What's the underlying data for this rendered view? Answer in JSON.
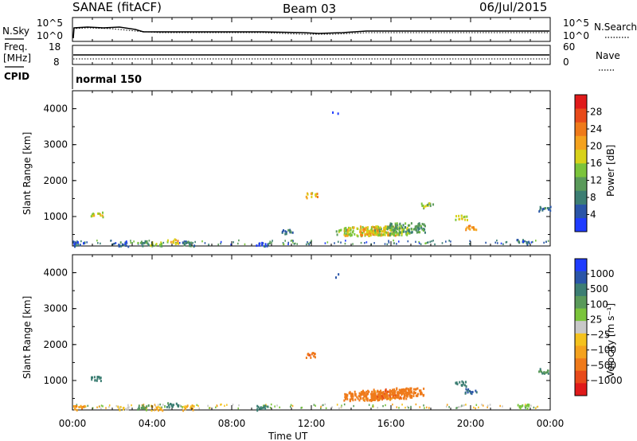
{
  "header": {
    "station": "SANAE (fitACF)",
    "beam": "Beam 03",
    "date": "06/Jul/2015"
  },
  "strip_panels": {
    "nsky": {
      "left_label": "N.Sky",
      "right_label": "N.Search",
      "left_ticks": [
        "10^5",
        "10^0"
      ],
      "right_ticks": [
        "10^5",
        "10^0"
      ]
    },
    "freq": {
      "left_label_line1": "Freq.",
      "left_label_line2": "[MHz]",
      "right_label": "Nave",
      "left_ticks": [
        "18",
        "8"
      ],
      "right_ticks": [
        "60",
        "0"
      ]
    },
    "cpid": {
      "label": "CPID",
      "value": "normal 150"
    }
  },
  "chart_data": [
    {
      "type": "heatmap",
      "name": "power",
      "ylabel": "Slant Range [km]",
      "ylim": [
        180,
        4500
      ],
      "yticks": [
        "1000",
        "2000",
        "3000",
        "4000"
      ],
      "colorbar_label": "Power [dB]",
      "colorbar_ticks": [
        "4",
        "8",
        "12",
        "16",
        "20",
        "24",
        "28"
      ],
      "colorbar_colors": [
        "#1f3cff",
        "#2a55a8",
        "#3c7e73",
        "#5a9a5a",
        "#7bc43b",
        "#d8d21a",
        "#f4a21e",
        "#ef7a1a",
        "#e84a1a",
        "#e01a1a"
      ],
      "clusters": [
        {
          "t": 0.3,
          "r": 230,
          "v": 4
        },
        {
          "t": 1.2,
          "r": 1050,
          "v": 16
        },
        {
          "t": 2.5,
          "r": 230,
          "v": 6
        },
        {
          "t": 3.5,
          "r": 240,
          "v": 10
        },
        {
          "t": 4.2,
          "r": 230,
          "v": 14
        },
        {
          "t": 5.0,
          "r": 300,
          "v": 18
        },
        {
          "t": 5.8,
          "r": 230,
          "v": 8
        },
        {
          "t": 9.5,
          "r": 230,
          "v": 4
        },
        {
          "t": 10.8,
          "r": 560,
          "v": 8
        },
        {
          "t": 12.0,
          "r": 1580,
          "v": 18
        },
        {
          "t": 13.3,
          "r": 3930,
          "v": 4
        },
        {
          "t": 13.5,
          "r": 560,
          "v": 12
        },
        {
          "t": 14.5,
          "r": 580,
          "v": 16
        },
        {
          "t": 15.3,
          "r": 590,
          "v": 20
        },
        {
          "t": 16.0,
          "r": 600,
          "v": 14
        },
        {
          "t": 16.8,
          "r": 680,
          "v": 10
        },
        {
          "t": 17.8,
          "r": 1300,
          "v": 14
        },
        {
          "t": 19.5,
          "r": 950,
          "v": 16
        },
        {
          "t": 20.0,
          "r": 680,
          "v": 20
        },
        {
          "t": 22.6,
          "r": 280,
          "v": 6
        },
        {
          "t": 23.7,
          "r": 1200,
          "v": 8
        }
      ]
    },
    {
      "type": "heatmap",
      "name": "velocity",
      "xlabel": "Time UT",
      "ylabel": "Slant Range [km]",
      "ylim": [
        180,
        4500
      ],
      "xticks": [
        "00:00",
        "04:00",
        "08:00",
        "12:00",
        "16:00",
        "20:00",
        "00:00"
      ],
      "yticks": [
        "1000",
        "2000",
        "3000",
        "4000"
      ],
      "colorbar_label": "Velocity [m s⁻¹]",
      "colorbar_ticks": [
        "1000",
        "500",
        "100",
        "25",
        "−25",
        "−100",
        "−500",
        "−1000"
      ],
      "colorbar_colors": [
        "#1f3cff",
        "#2a55a8",
        "#3c7e73",
        "#5a9a5a",
        "#7bc43b",
        "#c8c8c8",
        "#f4c21e",
        "#f4a21e",
        "#ef7a1a",
        "#e84a1a",
        "#e01a1a"
      ],
      "clusters": [
        {
          "t": 0.3,
          "r": 230,
          "v": -100
        },
        {
          "t": 1.2,
          "r": 1050,
          "v": 200
        },
        {
          "t": 2.5,
          "r": 230,
          "v": -30
        },
        {
          "t": 3.5,
          "r": 240,
          "v": 80
        },
        {
          "t": 4.2,
          "r": 230,
          "v": -60
        },
        {
          "t": 5.0,
          "r": 300,
          "v": 150
        },
        {
          "t": 5.8,
          "r": 230,
          "v": -50
        },
        {
          "t": 9.5,
          "r": 230,
          "v": 300
        },
        {
          "t": 12.0,
          "r": 1700,
          "v": -400
        },
        {
          "t": 13.3,
          "r": 3930,
          "v": 900
        },
        {
          "t": 14.5,
          "r": 560,
          "v": -200
        },
        {
          "t": 15.3,
          "r": 580,
          "v": -150
        },
        {
          "t": 16.0,
          "r": 620,
          "v": -400
        },
        {
          "t": 16.8,
          "r": 650,
          "v": -300
        },
        {
          "t": 19.5,
          "r": 900,
          "v": 300
        },
        {
          "t": 20.0,
          "r": 700,
          "v": 500
        },
        {
          "t": 22.6,
          "r": 280,
          "v": 40
        },
        {
          "t": 23.7,
          "r": 1250,
          "v": 80
        }
      ]
    }
  ]
}
